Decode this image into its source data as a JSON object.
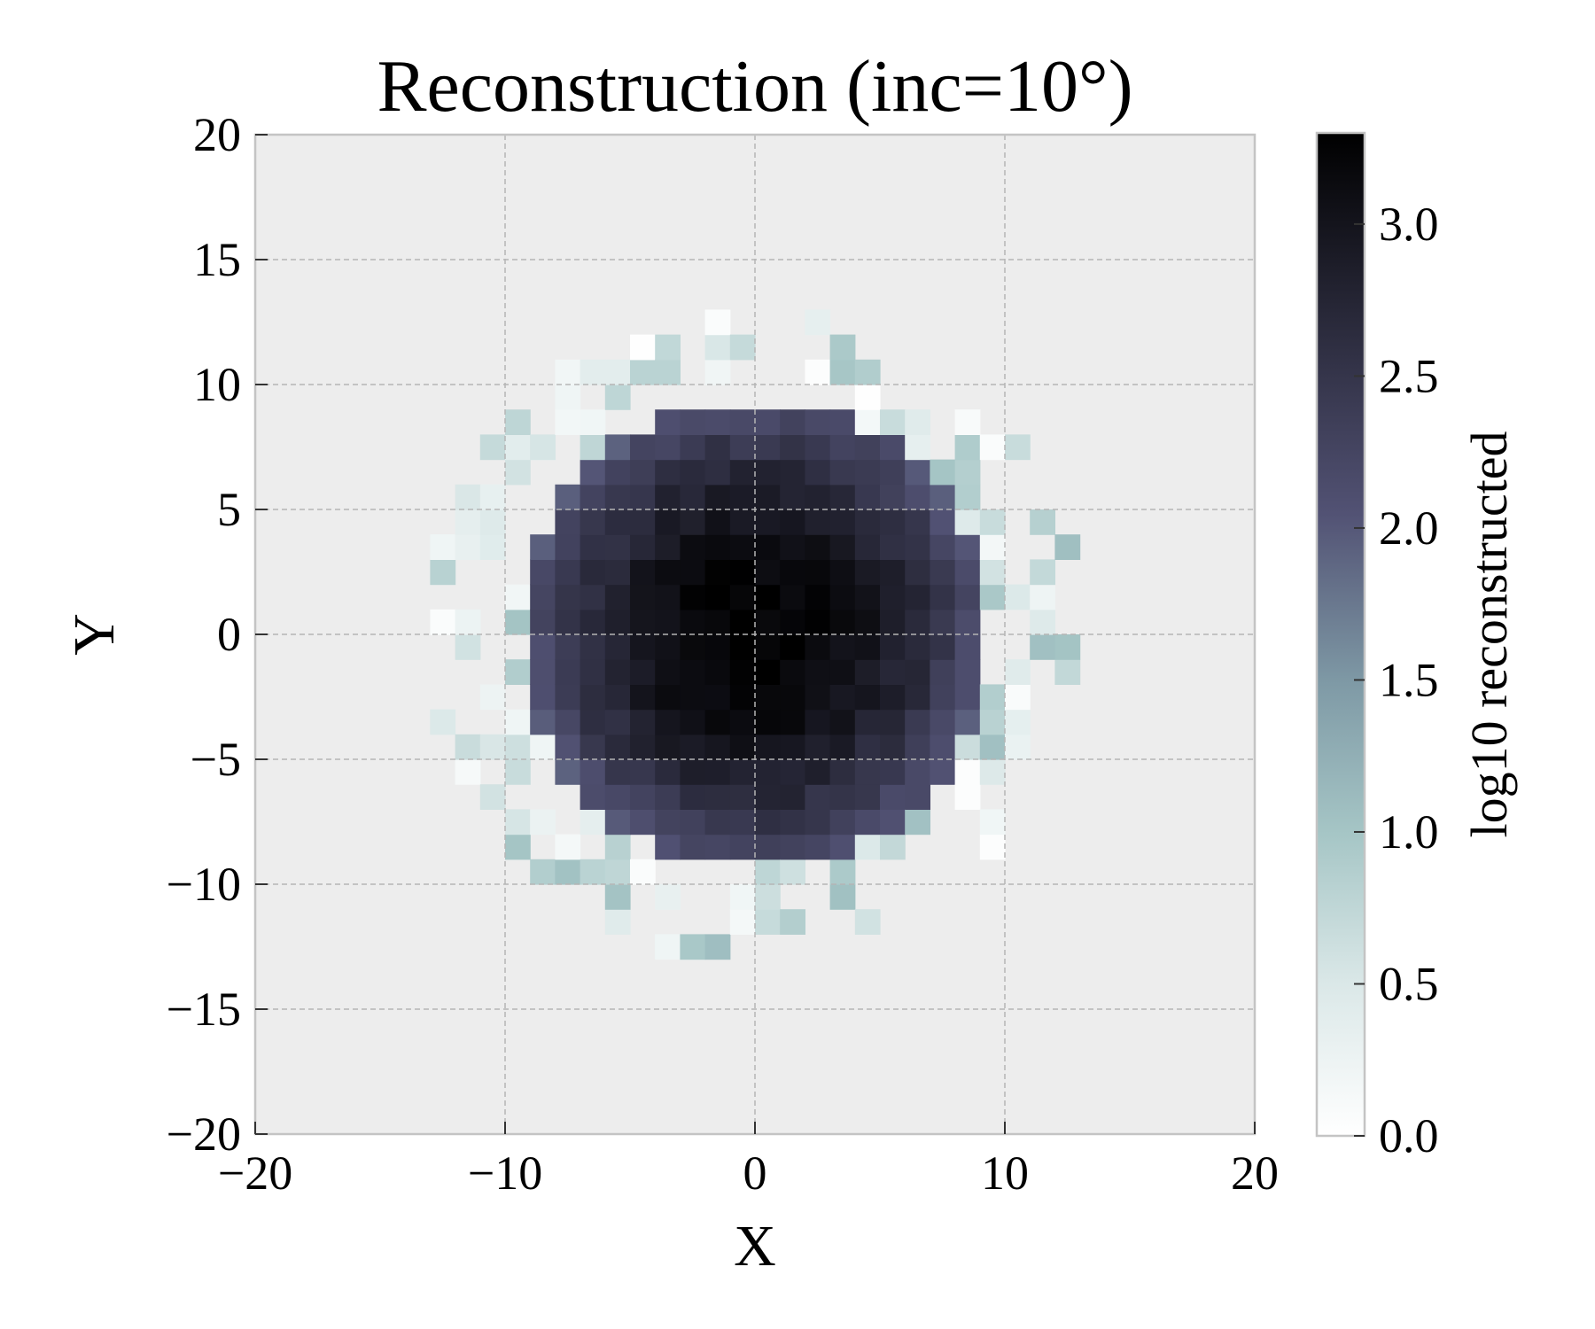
{
  "chart_data": {
    "type": "heatmap",
    "title": "Reconstruction (inc=10°)",
    "xlabel": "X",
    "ylabel": "Y",
    "xlim": [
      -20,
      20
    ],
    "ylim": [
      -20,
      20
    ],
    "xticks": [
      -20,
      -10,
      0,
      10,
      20
    ],
    "yticks": [
      20,
      15,
      10,
      5,
      0,
      -5,
      -10,
      -15,
      -20
    ],
    "xtick_labels": [
      "−20",
      "−10",
      "0",
      "10",
      "20"
    ],
    "ytick_labels": [
      "20",
      "15",
      "10",
      "5",
      "0",
      "−5",
      "−10",
      "−15",
      "−20"
    ],
    "grid": true,
    "background_color": "#ededed",
    "bin_size": 1,
    "colormap": "bone_r",
    "colorbar": {
      "label": "log10 reconstructed",
      "range": [
        0,
        3.3
      ],
      "ticks": [
        0.0,
        0.5,
        1.0,
        1.5,
        2.0,
        2.5,
        3.0
      ],
      "tick_labels": [
        "0.0",
        "0.5",
        "1.0",
        "1.5",
        "2.0",
        "2.5",
        "3.0"
      ]
    },
    "distribution": {
      "peak_log10": 3.3,
      "sigma_x": 4.5,
      "sigma_y": 4.6,
      "support_radius": 10
    }
  }
}
